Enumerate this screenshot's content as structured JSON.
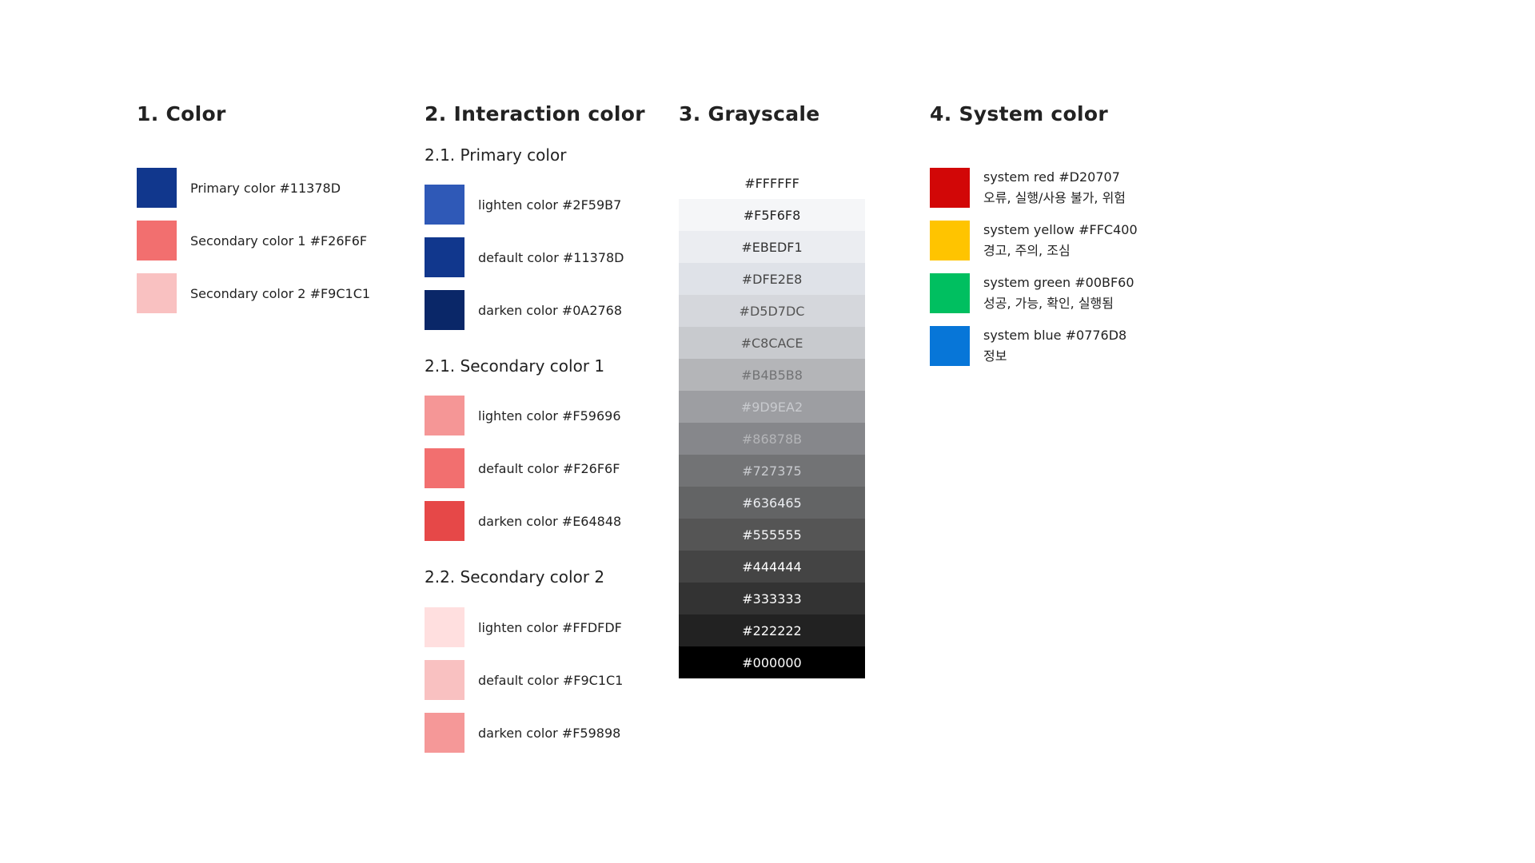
{
  "color": {
    "title": "1. Color",
    "items": [
      {
        "label": "Primary color #11378D",
        "hex": "#11378D"
      },
      {
        "label": "Secondary color 1 #F26F6F",
        "hex": "#F26F6F"
      },
      {
        "label": "Secondary color 2 #F9C1C1",
        "hex": "#F9C1C1"
      }
    ]
  },
  "interaction": {
    "title": "2. Interaction color",
    "groups": [
      {
        "title": "2.1. Primary color",
        "items": [
          {
            "label": "lighten color #2F59B7",
            "hex": "#2F59B7"
          },
          {
            "label": "default color #11378D",
            "hex": "#11378D"
          },
          {
            "label": "darken color #0A2768",
            "hex": "#0A2768"
          }
        ]
      },
      {
        "title": "2.1. Secondary color 1",
        "items": [
          {
            "label": "lighten color #F59696",
            "hex": "#F59696"
          },
          {
            "label": "default color #F26F6F",
            "hex": "#F26F6F"
          },
          {
            "label": "darken color #E64848",
            "hex": "#E64848"
          }
        ]
      },
      {
        "title": "2.2. Secondary color 2",
        "items": [
          {
            "label": "lighten color #FFDFDF",
            "hex": "#FFDFDF"
          },
          {
            "label": "default color #F9C1C1",
            "hex": "#F9C1C1"
          },
          {
            "label": "darken color #F59898",
            "hex": "#F59898"
          }
        ]
      }
    ]
  },
  "grayscale": {
    "title": "3. Grayscale",
    "items": [
      {
        "label": "#FFFFFF",
        "hex": "#FFFFFF",
        "text_color": "#222222"
      },
      {
        "label": "#F5F6F8",
        "hex": "#F5F6F8",
        "text_color": "#222222"
      },
      {
        "label": "#EBEDF1",
        "hex": "#EBEDF1",
        "text_color": "#333333"
      },
      {
        "label": "#DFE2E8",
        "hex": "#DFE2E8",
        "text_color": "#444444"
      },
      {
        "label": "#D5D7DC",
        "hex": "#D5D7DC",
        "text_color": "#555555"
      },
      {
        "label": "#C8CACE",
        "hex": "#C8CACE",
        "text_color": "#555555"
      },
      {
        "label": "#B4B5B8",
        "hex": "#B4B5B8",
        "text_color": "#727375"
      },
      {
        "label": "#9D9EA2",
        "hex": "#9D9EA2",
        "text_color": "#C8CACE"
      },
      {
        "label": "#86878B",
        "hex": "#86878B",
        "text_color": "#B4B5B8"
      },
      {
        "label": "#727375",
        "hex": "#727375",
        "text_color": "#C8CACE"
      },
      {
        "label": "#636465",
        "hex": "#636465",
        "text_color": "#EBEDF1"
      },
      {
        "label": "#555555",
        "hex": "#555555",
        "text_color": "#F5F6F8"
      },
      {
        "label": "#444444",
        "hex": "#444444",
        "text_color": "#FFFFFF"
      },
      {
        "label": "#333333",
        "hex": "#333333",
        "text_color": "#FFFFFF"
      },
      {
        "label": "#222222",
        "hex": "#222222",
        "text_color": "#FFFFFF"
      },
      {
        "label": "#000000",
        "hex": "#000000",
        "text_color": "#FFFFFF"
      }
    ]
  },
  "system": {
    "title": "4. System color",
    "items": [
      {
        "label": "system red #D20707",
        "desc": "오류, 실행/사용 불가, 위험",
        "hex": "#D20707"
      },
      {
        "label": "system yellow #FFC400",
        "desc": "경고, 주의, 조심",
        "hex": "#FFC400"
      },
      {
        "label": "system green #00BF60",
        "desc": "성공, 가능, 확인, 실행됨",
        "hex": "#00BF60"
      },
      {
        "label": "system blue #0776D8",
        "desc": "정보",
        "hex": "#0776D8"
      }
    ]
  }
}
